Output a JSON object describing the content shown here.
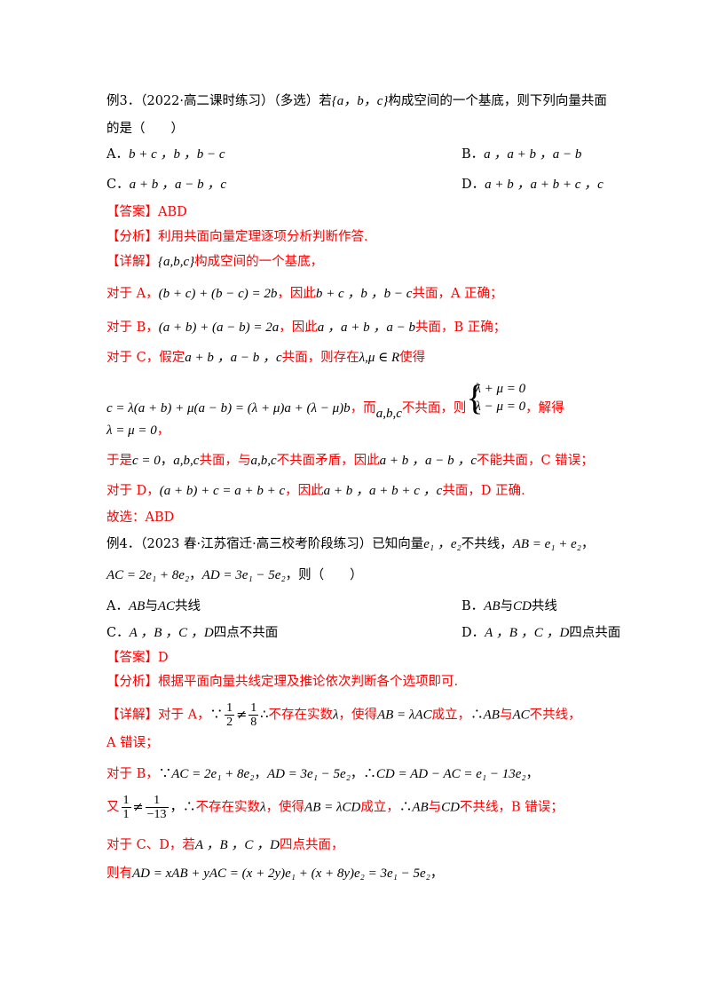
{
  "ex3": {
    "stem_1": "例3．（2022·高二课时练习）（多选）若",
    "stem_basis": "{a，b，c}",
    "stem_2": "构成空间的一个基底，则下列向量共面",
    "stem_3": "的是（　　）",
    "opt_a_label": "A．",
    "opt_a": "b + c ，b ，b − c",
    "opt_b_label": "B．",
    "opt_b": "a ，a + b ，a − b",
    "opt_c_label": "C．",
    "opt_c": "a + b ，a − b ，c",
    "opt_d_label": "D．",
    "opt_d": "a + b ，a + b + c ，c",
    "answer_label": "【答案】",
    "answer": "ABD",
    "analysis_label": "【分析】",
    "analysis": "利用共面向量定理逐项分析判断作答.",
    "detail_label": "【详解】",
    "detail_basis": "{a,b,c}",
    "detail_1": "构成空间的一个基底，",
    "a_prefix": "对于 A，",
    "a_math": "(b + c) + (b − c) = 2b",
    "a_text_1": "，因此",
    "a_vecs": "b + c ，b ，b − c",
    "a_text_2": "共面，A 正确；",
    "b_prefix": "对于 B，",
    "b_math": "(a + b) + (a − b) = 2a",
    "b_text_1": "，因此",
    "b_vecs": "a ，a + b ，a − b",
    "b_text_2": "共面，B 正确；",
    "c_prefix": "对于 C，假定",
    "c_vecs": "a + b ，a − b ，c",
    "c_text_1": "共面，则存在",
    "c_lm": "λ,μ ∈ R",
    "c_text_2": "使得",
    "c_eq": "c = λ(a + b) + μ(a − b) = (λ + μ)a + (λ − μ)b",
    "c_text_3": "，而",
    "c_abc": "a,b,c",
    "c_text_4": "不共面，则",
    "c_sys_1": "λ + μ = 0",
    "c_sys_2": "λ − μ = 0",
    "c_text_5": "，解得",
    "c_result": "λ = μ = 0",
    "c_result_end": "，",
    "c2_text_1": "于是",
    "c2_math": "c = 0",
    "c2_sep": "，",
    "c2_abc": "a,b,c",
    "c2_text_2": "共面，与",
    "c2_abc2": "a,b,c",
    "c2_text_3": "不共面矛盾，因此",
    "c2_vecs": "a + b ，a − b ，c",
    "c2_text_4": "不能共面，C 错误；",
    "d_prefix": "对于 D，",
    "d_math": "(a + b) + c = a + b + c",
    "d_text_1": "，因此",
    "d_vecs": "a + b ，a + b + c ，c",
    "d_text_2": "共面，D 正确.",
    "conclusion": "故选：ABD"
  },
  "ex4": {
    "stem_1": "例4．（2023 春·江苏宿迁·高三校考阶段练习）已知向量",
    "stem_vecs": "e₁ ，e₂",
    "stem_2": "不共线，",
    "stem_ab": "AB = e₁ + e₂",
    "stem_comma": "，",
    "stem_ac": "AC = 2e₁ + 8e₂",
    "stem_ad": "AD = 3e₁ − 5e₂",
    "stem_3": "，则（　　）",
    "opt_a_label": "A．",
    "opt_a_1": "AB",
    "opt_a_2": "与",
    "opt_a_3": "AC",
    "opt_a_4": "共线",
    "opt_b_label": "B．",
    "opt_b_1": "AB",
    "opt_b_2": "与",
    "opt_b_3": "CD",
    "opt_b_4": "共线",
    "opt_c_label": "C．",
    "opt_c_pts": "A ，B ，C ，D",
    "opt_c_text": "四点不共面",
    "opt_d_label": "D．",
    "opt_d_pts": "A ，B ，C ，D",
    "opt_d_text": "四点共面",
    "answer_label": "【答案】",
    "answer": "D",
    "analysis_label": "【分析】",
    "analysis": "根据平面向量共线定理及推论依次判断各个选项即可.",
    "detail_label": "【详解】",
    "a_prefix": "对于 A，",
    "because": "∵",
    "frac_1_num": "1",
    "frac_1_den": "2",
    "neq": "≠",
    "frac_2_num": "1",
    "frac_2_den": "8",
    "therefore": "∴",
    "a_text_1": "不存在实数",
    "lambda": "λ",
    "a_text_2": "，使得",
    "a_eq": "AB = λAC",
    "a_text_3": "成立，",
    "a_concl_1": "AB",
    "a_concl_2": "与",
    "a_concl_3": "AC",
    "a_concl_4": "不共线，",
    "a_wrong": "A 错误；",
    "b_prefix": "对于 B，",
    "b_ac": "AC = 2e₁ + 8e₂",
    "b_ad": "AD = 3e₁ − 5e₂",
    "b_cd": "CD = AD − AC = e₁ − 13e₂",
    "b_you": "又",
    "frac_3_num": "1",
    "frac_3_den": "1",
    "frac_4_num": "1",
    "frac_4_den": "−13",
    "b_text_1": "不存在实数",
    "b_text_2": "，使得",
    "b_eq": "AB = λCD",
    "b_text_3": "成立，",
    "b_concl_1": "AB",
    "b_concl_2": "与",
    "b_concl_3": "CD",
    "b_concl_4": "不共线，B 错误；",
    "cd_prefix": "对于 C、D，若",
    "cd_pts": "A ，B ，C ，D",
    "cd_text": "四点共面，",
    "then_prefix": "则有",
    "then_eq": "AD = xAB + yAC = (x + 2y)e₁ + (x + 8y)e₂ = 3e₁ − 5e₂",
    "then_end": "，"
  }
}
